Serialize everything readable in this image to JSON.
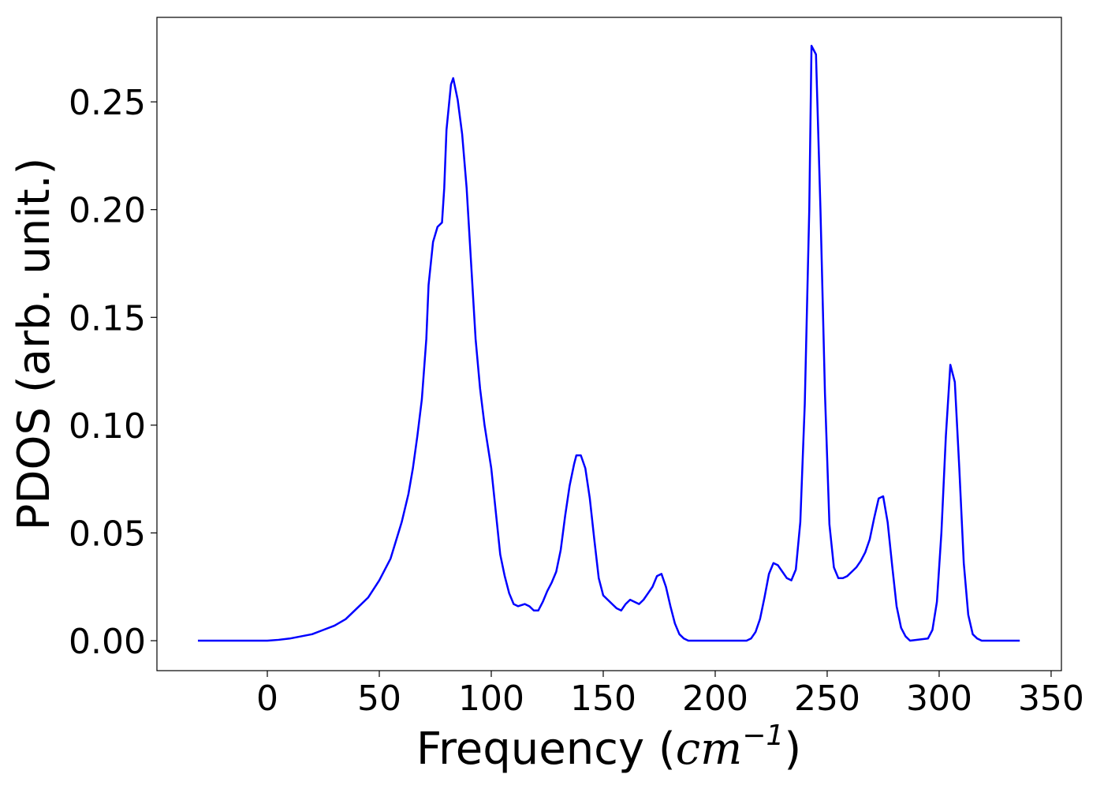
{
  "chart_data": {
    "type": "line",
    "xlabel": {
      "text": "Frequency (",
      "math": "cm",
      "sup": "−1",
      "close": ")"
    },
    "ylabel": "PDOS (arb. unit.)",
    "x": [
      -31,
      -20,
      -10,
      0,
      5,
      10,
      15,
      20,
      25,
      30,
      35,
      40,
      45,
      50,
      55,
      60,
      63,
      65,
      67,
      69,
      71,
      72,
      74,
      76,
      78,
      79,
      80,
      82,
      83,
      85,
      87,
      89,
      91,
      93,
      95,
      97,
      100,
      102,
      104,
      106,
      108,
      110,
      112,
      115,
      117,
      119,
      121,
      123,
      125,
      127,
      129,
      131,
      133,
      135,
      137,
      138,
      140,
      142,
      144,
      146,
      148,
      150,
      152,
      154,
      156,
      158,
      160,
      162,
      164,
      166,
      168,
      170,
      172,
      174,
      176,
      178,
      180,
      182,
      184,
      186,
      188,
      214,
      216,
      218,
      220,
      222,
      224,
      226,
      228,
      230,
      232,
      234,
      236,
      238,
      240,
      242,
      243,
      245,
      247,
      249,
      251,
      253,
      255,
      257,
      259,
      261,
      263,
      265,
      267,
      269,
      271,
      273,
      275,
      277,
      279,
      281,
      283,
      285,
      287,
      295,
      297,
      299,
      301,
      303,
      305,
      307,
      309,
      311,
      313,
      315,
      317,
      319,
      336
    ],
    "series": [
      {
        "name": "PDOS",
        "color": "#0000ff",
        "values": [
          0,
          0,
          0,
          0,
          0.0004,
          0.001,
          0.002,
          0.003,
          0.005,
          0.007,
          0.01,
          0.015,
          0.02,
          0.028,
          0.038,
          0.055,
          0.068,
          0.08,
          0.095,
          0.112,
          0.14,
          0.165,
          0.185,
          0.192,
          0.194,
          0.21,
          0.237,
          0.258,
          0.261,
          0.251,
          0.235,
          0.21,
          0.175,
          0.14,
          0.117,
          0.1,
          0.08,
          0.06,
          0.04,
          0.03,
          0.022,
          0.017,
          0.016,
          0.017,
          0.016,
          0.014,
          0.014,
          0.018,
          0.023,
          0.027,
          0.032,
          0.042,
          0.058,
          0.072,
          0.082,
          0.086,
          0.086,
          0.08,
          0.066,
          0.047,
          0.029,
          0.021,
          0.019,
          0.017,
          0.015,
          0.014,
          0.017,
          0.019,
          0.018,
          0.017,
          0.019,
          0.022,
          0.025,
          0.03,
          0.031,
          0.025,
          0.016,
          0.008,
          0.003,
          0.001,
          0,
          0,
          0.001,
          0.004,
          0.01,
          0.02,
          0.031,
          0.036,
          0.035,
          0.032,
          0.029,
          0.028,
          0.033,
          0.055,
          0.11,
          0.2,
          0.276,
          0.272,
          0.2,
          0.115,
          0.054,
          0.034,
          0.029,
          0.029,
          0.03,
          0.032,
          0.034,
          0.037,
          0.041,
          0.047,
          0.057,
          0.066,
          0.067,
          0.055,
          0.035,
          0.016,
          0.006,
          0.002,
          0,
          0.001,
          0.005,
          0.018,
          0.05,
          0.095,
          0.128,
          0.12,
          0.08,
          0.036,
          0.012,
          0.003,
          0.001,
          0,
          0
        ]
      }
    ],
    "xlim": [
      -49.3,
      354.6
    ],
    "xticks": [
      0,
      50,
      100,
      150,
      200,
      250,
      300,
      350
    ],
    "ylim": [
      -0.0139,
      0.2892
    ],
    "yticks": [
      {
        "value": 0,
        "label": "0.00"
      },
      0.05,
      {
        "value": 0.1,
        "label": "0.10"
      },
      0.15,
      {
        "value": 0.2,
        "label": "0.20"
      },
      0.25
    ]
  }
}
